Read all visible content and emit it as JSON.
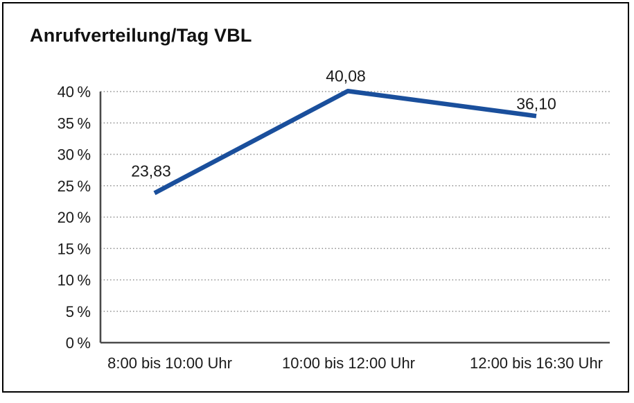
{
  "window": {
    "background_color": "#ffffff",
    "frame_border_color": "#000000"
  },
  "chart_data": {
    "type": "line",
    "title": "Anrufverteilung/Tag VBL",
    "categories": [
      "8:00 bis 10:00 Uhr",
      "10:00 bis 12:00 Uhr",
      "12:00 bis 16:30 Uhr"
    ],
    "values": [
      23.83,
      40.08,
      36.1
    ],
    "value_labels": [
      "23,83",
      "40,08",
      "36,10"
    ],
    "xlabel": "",
    "ylabel": "",
    "ylim": [
      0,
      40
    ],
    "ytick_step": 5,
    "ytick_labels": [
      "0 %",
      "5 %",
      "10 %",
      "15 %",
      "20 %",
      "25 %",
      "30 %",
      "35 %",
      "40 %"
    ],
    "grid": "horizontal-dotted",
    "legend": "none",
    "line_color": "#1A4F9C",
    "text_color": "#1a1a1a",
    "grid_color": "#8c8c8c",
    "axis_color": "#4a4a4a"
  }
}
